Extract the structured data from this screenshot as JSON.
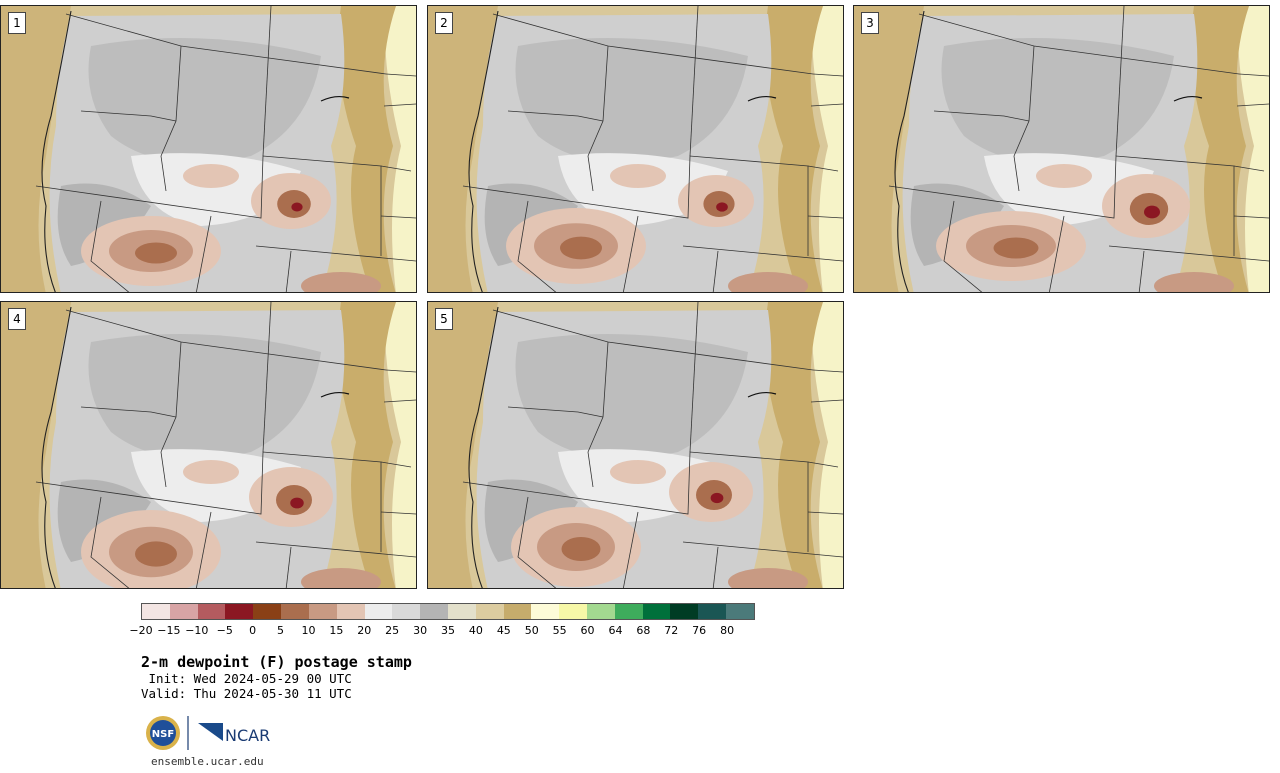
{
  "stamps": [
    {
      "label": "1"
    },
    {
      "label": "2"
    },
    {
      "label": "3"
    },
    {
      "label": "4"
    },
    {
      "label": "5"
    }
  ],
  "colorbar": {
    "colors": [
      "#f3e5e3",
      "#d8a4a5",
      "#b45b5f",
      "#8b1722",
      "#8a4016",
      "#aa6e4e",
      "#c89a83",
      "#e3c5b4",
      "#ededed",
      "#d9d9d9",
      "#b4b4b4",
      "#e3e0cb",
      "#dccca0",
      "#c6ac6c",
      "#fdfbd8",
      "#f7f8a8",
      "#a3d990",
      "#3eac5c",
      "#00703b",
      "#003c24",
      "#1a5654",
      "#4b7a7a"
    ],
    "ticks": [
      "−20",
      "−15",
      "−10",
      "−5",
      "0",
      "5",
      "10",
      "15",
      "20",
      "25",
      "30",
      "35",
      "40",
      "45",
      "50",
      "55",
      "60",
      "64",
      "68",
      "72",
      "76",
      "80"
    ]
  },
  "title": "2-m dewpoint (F) postage stamp",
  "init": " Init: Wed 2024-05-29 00 UTC",
  "valid": "Valid: Thu 2024-05-30 11 UTC",
  "logos": {
    "nsf": "NSF",
    "ncar": "NCAR"
  },
  "site": "ensemble.ucar.edu"
}
